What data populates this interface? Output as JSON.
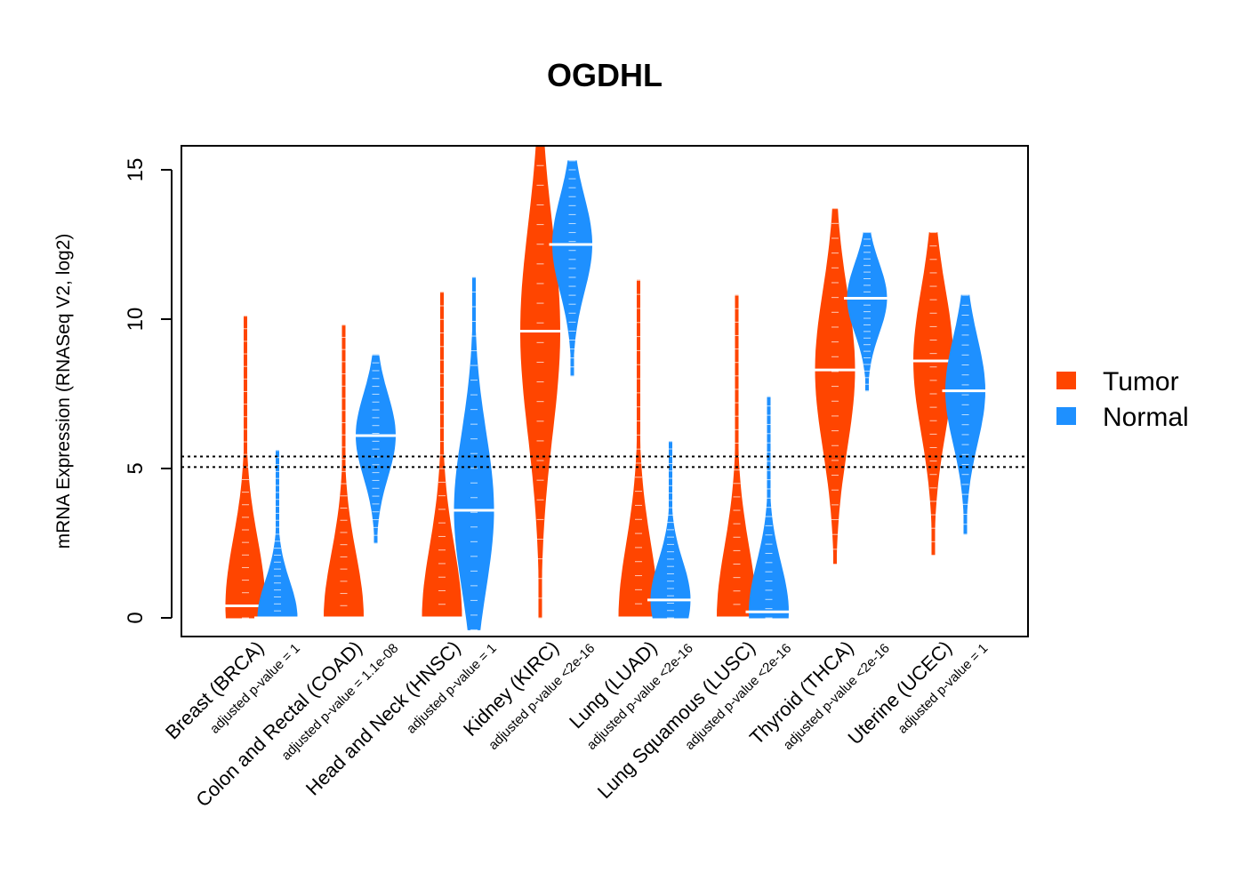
{
  "chart_data": {
    "type": "violin",
    "title": "OGDHL",
    "ylabel": "mRNA Expression (RNASeq V2, log2)",
    "ylim": [
      -0.6,
      15.8
    ],
    "yticks": [
      "0",
      "5",
      "10",
      "15"
    ],
    "reference_lines": [
      5.05,
      5.4
    ],
    "legend": {
      "placement": "right",
      "items": [
        {
          "label": "Tumor",
          "color": "#FF4500"
        },
        {
          "label": "Normal",
          "color": "#1E90FF"
        }
      ]
    },
    "categories": [
      {
        "label": "Breast (BRCA)",
        "pvalue": "adjusted p-value = 1",
        "tumor": {
          "median": 0.4,
          "min": 0,
          "max": 10.1
        },
        "normal": {
          "median": 0.0,
          "min": 0,
          "max": 5.6
        }
      },
      {
        "label": "Colon and Rectal (COAD)",
        "pvalue": "adjusted p-value = 1.1e-08",
        "tumor": {
          "median": 0.0,
          "min": 0,
          "max": 9.8
        },
        "normal": {
          "median": 6.1,
          "min": 2.5,
          "max": 8.8
        }
      },
      {
        "label": "Head and Neck (HNSC)",
        "pvalue": "adjusted p-value = 1",
        "tumor": {
          "median": 0.0,
          "min": 0,
          "max": 10.9
        },
        "normal": {
          "median": 3.6,
          "min": -0.4,
          "max": 11.4
        }
      },
      {
        "label": "Kidney (KIRC)",
        "pvalue": "adjusted p-value <2e-16",
        "tumor": {
          "median": 9.6,
          "min": 0,
          "max": 15.8
        },
        "normal": {
          "median": 12.5,
          "min": 8.1,
          "max": 15.3
        }
      },
      {
        "label": "Lung (LUAD)",
        "pvalue": "adjusted p-value <2e-16",
        "tumor": {
          "median": 0.0,
          "min": 0,
          "max": 11.3
        },
        "normal": {
          "median": 0.6,
          "min": 0,
          "max": 5.9
        }
      },
      {
        "label": "Lung Squamous (LUSC)",
        "pvalue": "adjusted p-value <2e-16",
        "tumor": {
          "median": 0.0,
          "min": 0,
          "max": 10.8
        },
        "normal": {
          "median": 0.2,
          "min": 0,
          "max": 7.4
        }
      },
      {
        "label": "Thyroid (THCA)",
        "pvalue": "adjusted p-value <2e-16",
        "tumor": {
          "median": 8.3,
          "min": 1.8,
          "max": 13.7
        },
        "normal": {
          "median": 10.7,
          "min": 7.6,
          "max": 12.9
        }
      },
      {
        "label": "Uterine (UCEC)",
        "pvalue": "adjusted p-value = 1",
        "tumor": {
          "median": 8.6,
          "min": 2.1,
          "max": 12.9
        },
        "normal": {
          "median": 7.6,
          "min": 2.8,
          "max": 10.8
        }
      }
    ]
  }
}
